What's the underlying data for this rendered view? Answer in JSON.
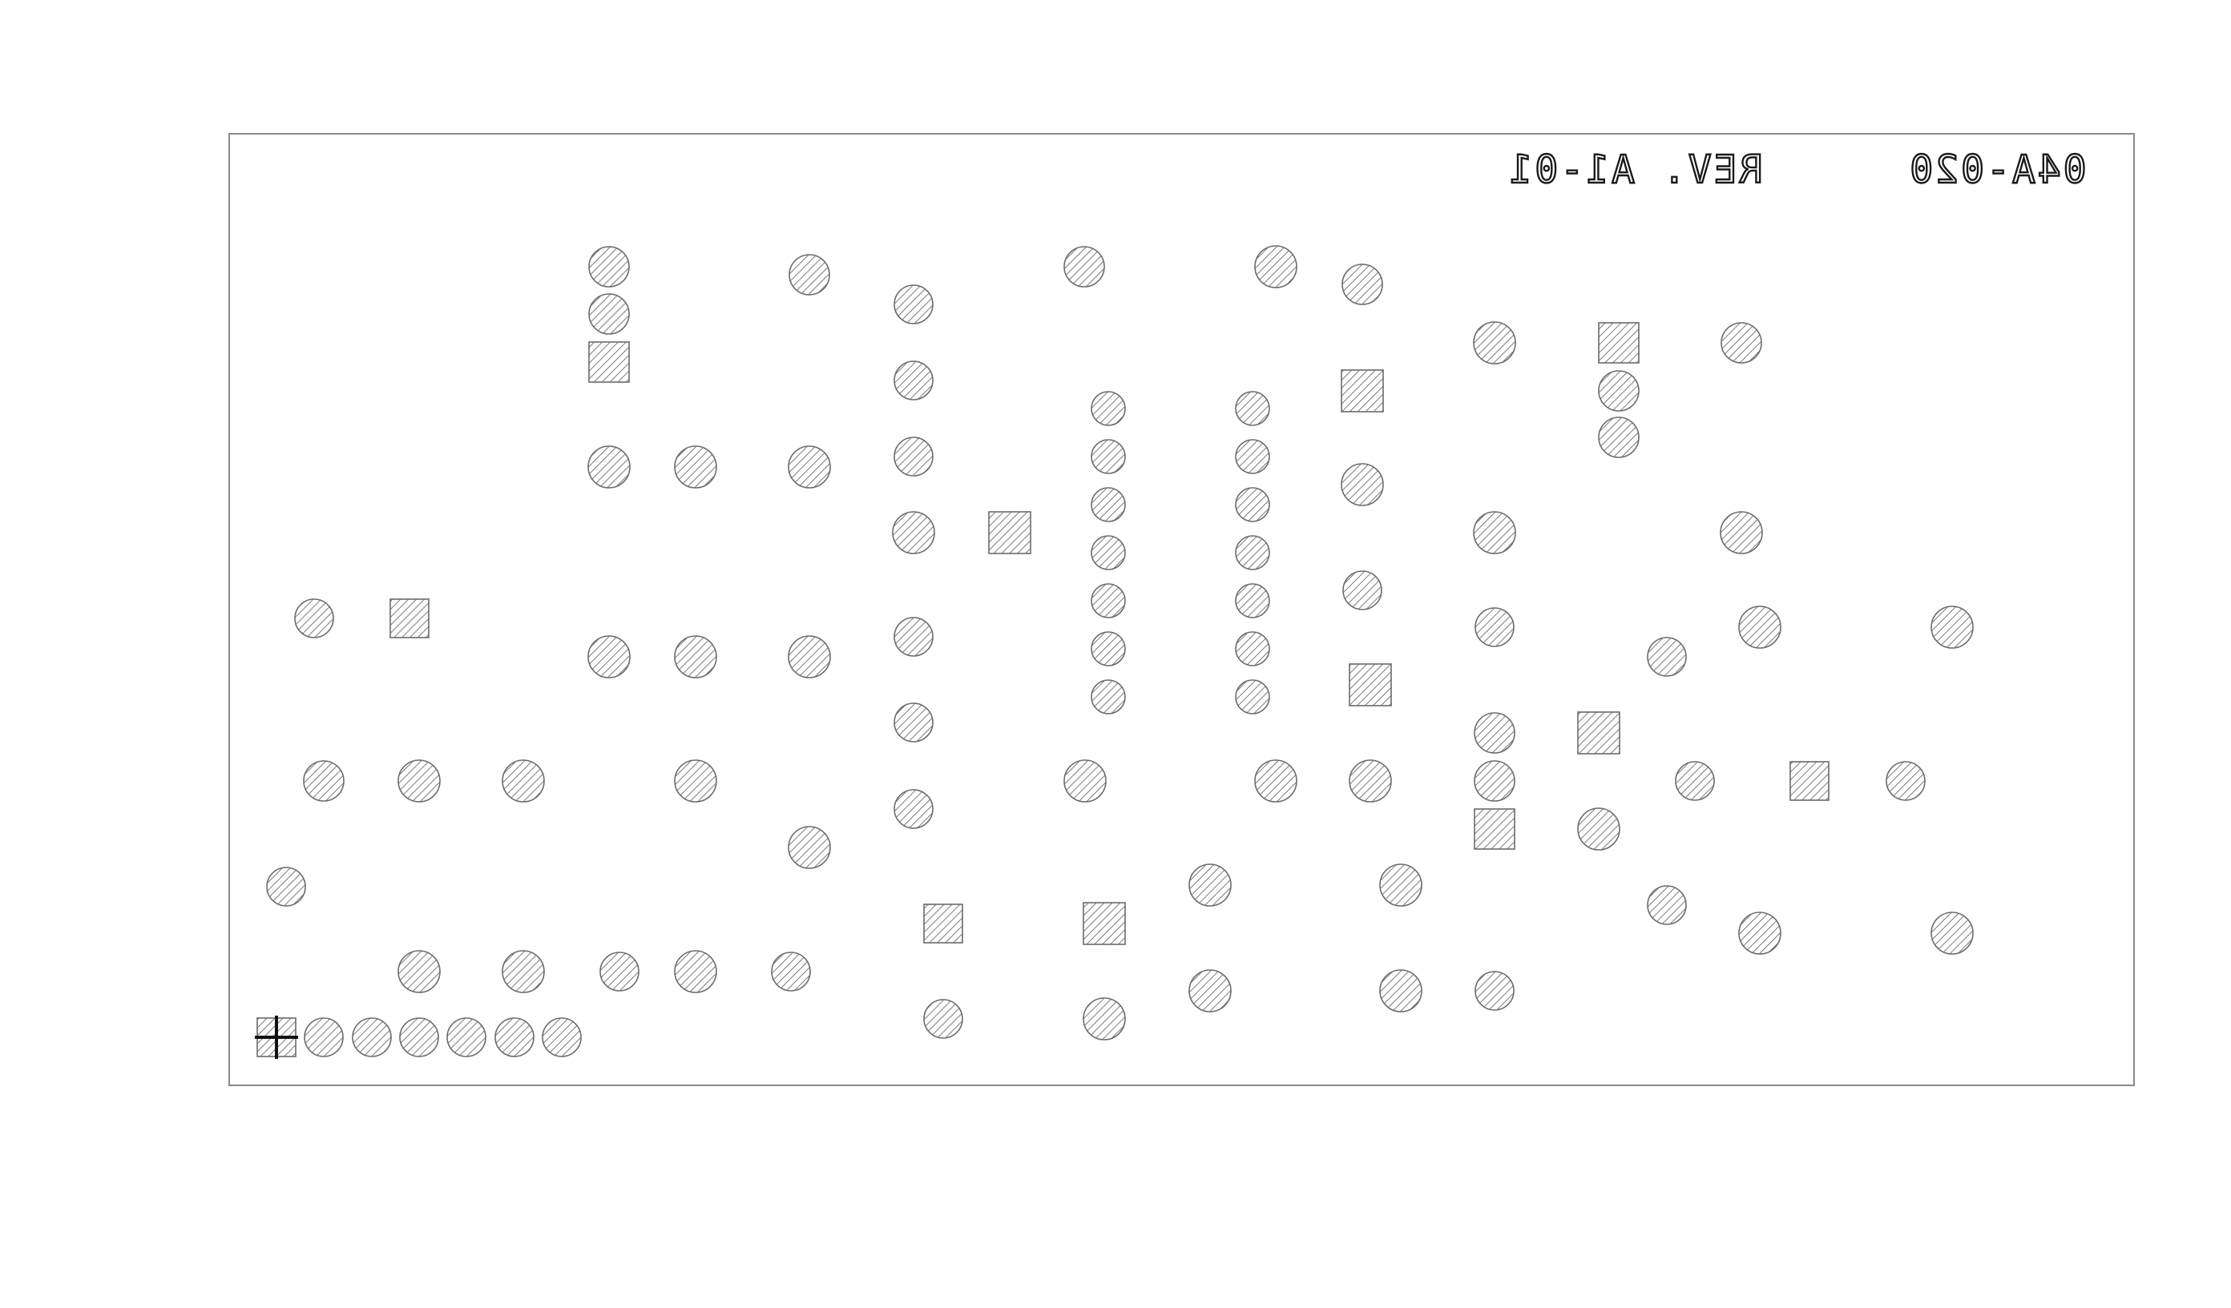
{
  "board": {
    "part_number": "04A-020",
    "revision": "REV. A1-01",
    "silkscreen_mirrored": true
  },
  "colors": {
    "outline": "#8a8a8a",
    "pad_stroke": "#6b6b6b",
    "hatch": "#5a5a5a",
    "origin_marker": "#111111",
    "background": "#ffffff"
  },
  "pad_summary": {
    "shapes": [
      "round",
      "square"
    ],
    "fill_pattern": "diagonal-hatch"
  }
}
